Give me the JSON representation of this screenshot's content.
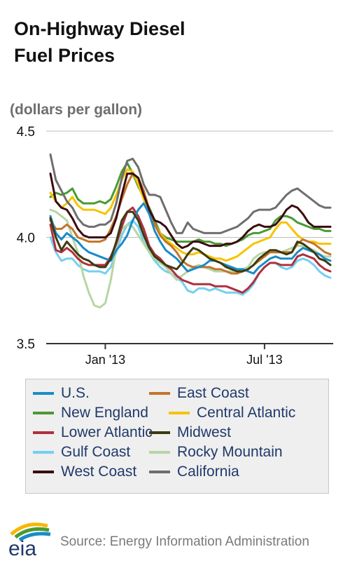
{
  "header": {
    "title_line1": "On-Highway Diesel",
    "title_line2": "Fuel Prices",
    "unit_label": "(dollars per gallon)"
  },
  "footer": {
    "logo_text": "eia",
    "source": "Source: Energy Information Administration"
  },
  "chart_data": {
    "type": "line",
    "title": "On-Highway Diesel Fuel Prices",
    "ylabel": "(dollars per gallon)",
    "ylim": [
      3.5,
      4.5
    ],
    "yticks": [
      "3.5",
      "4.0",
      "4.5"
    ],
    "x_ticks": [
      "Jan '13",
      "Jul '13"
    ],
    "x_tick_indices": [
      10,
      39
    ],
    "grid": "horizontal",
    "legend_position": "bottom",
    "x_count": 52,
    "series": [
      {
        "name": "U.S.",
        "color": "#1a8bc9",
        "values": [
          4.1,
          4.02,
          3.99,
          4.02,
          4.0,
          3.98,
          3.95,
          3.93,
          3.92,
          3.91,
          3.9,
          3.89,
          3.94,
          3.97,
          4.01,
          4.08,
          4.13,
          4.16,
          4.11,
          4.03,
          3.98,
          3.94,
          3.92,
          3.9,
          3.87,
          3.84,
          3.85,
          3.86,
          3.87,
          3.89,
          3.89,
          3.88,
          3.87,
          3.86,
          3.85,
          3.85,
          3.84,
          3.83,
          3.86,
          3.88,
          3.9,
          3.91,
          3.9,
          3.9,
          3.9,
          3.93,
          3.95,
          3.94,
          3.93,
          3.92,
          3.9,
          3.89
        ]
      },
      {
        "name": "East Coast",
        "color": "#c2752a",
        "values": [
          4.08,
          4.04,
          4.04,
          4.06,
          4.04,
          4.0,
          3.99,
          3.98,
          3.98,
          3.98,
          3.99,
          4.04,
          4.1,
          4.18,
          4.25,
          4.3,
          4.28,
          4.22,
          4.13,
          4.06,
          4.01,
          3.98,
          3.96,
          3.93,
          3.89,
          3.87,
          3.86,
          3.86,
          3.86,
          3.86,
          3.85,
          3.85,
          3.84,
          3.83,
          3.83,
          3.84,
          3.85,
          3.87,
          3.89,
          3.91,
          3.93,
          3.93,
          3.93,
          3.93,
          3.93,
          3.97,
          3.99,
          3.98,
          3.97,
          3.95,
          3.93,
          3.92
        ]
      },
      {
        "name": "New England",
        "color": "#4a9a33",
        "values": [
          4.19,
          4.21,
          4.2,
          4.21,
          4.23,
          4.18,
          4.16,
          4.16,
          4.16,
          4.17,
          4.16,
          4.18,
          4.24,
          4.31,
          4.35,
          4.3,
          4.24,
          4.19,
          4.14,
          4.08,
          4.02,
          4.0,
          3.99,
          3.98,
          3.98,
          3.98,
          3.98,
          3.99,
          3.98,
          3.98,
          3.97,
          3.97,
          3.96,
          3.97,
          3.98,
          3.99,
          4.01,
          4.02,
          4.02,
          4.03,
          4.04,
          4.08,
          4.1,
          4.1,
          4.09,
          4.07,
          4.06,
          4.05,
          4.04,
          4.04,
          4.03,
          4.03
        ]
      },
      {
        "name": "Central Atlantic",
        "color": "#f5c400",
        "values": [
          4.21,
          4.17,
          4.14,
          4.16,
          4.19,
          4.15,
          4.13,
          4.13,
          4.13,
          4.12,
          4.11,
          4.14,
          4.2,
          4.27,
          4.32,
          4.31,
          4.25,
          4.18,
          4.11,
          4.06,
          4.02,
          3.99,
          3.97,
          3.95,
          3.93,
          3.92,
          3.92,
          3.93,
          3.92,
          3.91,
          3.9,
          3.9,
          3.89,
          3.9,
          3.91,
          3.93,
          3.95,
          3.97,
          3.98,
          3.99,
          4.0,
          4.04,
          4.07,
          4.07,
          4.04,
          4.01,
          3.99,
          3.98,
          3.98,
          3.97,
          3.97,
          3.97
        ]
      },
      {
        "name": "Lower Atlantic",
        "color": "#b0303f",
        "values": [
          4.06,
          3.94,
          3.93,
          3.95,
          3.93,
          3.9,
          3.88,
          3.87,
          3.87,
          3.87,
          3.87,
          3.91,
          3.97,
          4.05,
          4.12,
          4.14,
          4.1,
          4.04,
          3.96,
          3.92,
          3.9,
          3.87,
          3.85,
          3.82,
          3.8,
          3.79,
          3.78,
          3.78,
          3.78,
          3.78,
          3.77,
          3.77,
          3.77,
          3.76,
          3.75,
          3.74,
          3.76,
          3.79,
          3.83,
          3.86,
          3.88,
          3.88,
          3.87,
          3.87,
          3.87,
          3.91,
          3.92,
          3.91,
          3.9,
          3.87,
          3.85,
          3.84
        ]
      },
      {
        "name": "Midwest",
        "color": "#3d3a12",
        "values": [
          4.09,
          4.0,
          3.94,
          3.98,
          3.95,
          3.92,
          3.9,
          3.89,
          3.87,
          3.86,
          3.86,
          3.9,
          3.98,
          4.08,
          4.12,
          4.12,
          4.08,
          4.01,
          3.95,
          3.91,
          3.89,
          3.87,
          3.86,
          3.85,
          3.88,
          3.92,
          3.95,
          3.94,
          3.92,
          3.9,
          3.89,
          3.88,
          3.86,
          3.85,
          3.84,
          3.84,
          3.85,
          3.87,
          3.9,
          3.92,
          3.94,
          3.94,
          3.93,
          3.92,
          3.93,
          3.98,
          3.97,
          3.95,
          3.93,
          3.9,
          3.89,
          3.87
        ]
      },
      {
        "name": "Gulf Coast",
        "color": "#75d0f0",
        "values": [
          4.0,
          3.93,
          3.89,
          3.9,
          3.9,
          3.87,
          3.85,
          3.84,
          3.84,
          3.84,
          3.83,
          3.86,
          3.93,
          4.01,
          4.06,
          4.08,
          4.05,
          3.98,
          3.93,
          3.89,
          3.86,
          3.84,
          3.83,
          3.81,
          3.79,
          3.75,
          3.74,
          3.76,
          3.76,
          3.75,
          3.76,
          3.75,
          3.74,
          3.74,
          3.74,
          3.73,
          3.75,
          3.78,
          3.83,
          3.86,
          3.88,
          3.88,
          3.86,
          3.85,
          3.86,
          3.89,
          3.9,
          3.89,
          3.87,
          3.84,
          3.82,
          3.81
        ]
      },
      {
        "name": "Rocky Mountain",
        "color": "#b7d6a3",
        "values": [
          4.13,
          4.12,
          4.1,
          4.08,
          4.0,
          3.93,
          3.82,
          3.74,
          3.68,
          3.67,
          3.69,
          3.8,
          3.95,
          4.04,
          4.06,
          4.05,
          4.01,
          3.97,
          3.93,
          3.9,
          3.88,
          3.86,
          3.83,
          3.8,
          3.82,
          3.84,
          3.86,
          3.87,
          3.86,
          3.85,
          3.84,
          3.84,
          3.84,
          3.84,
          3.84,
          3.85,
          3.86,
          3.9,
          3.92,
          3.93,
          3.93,
          3.93,
          3.93,
          3.94,
          3.95,
          3.96,
          3.96,
          3.95,
          3.94,
          3.92,
          3.91,
          3.91
        ]
      },
      {
        "name": "West Coast",
        "color": "#3a0c10",
        "values": [
          4.3,
          4.17,
          4.14,
          4.13,
          4.09,
          4.04,
          4.01,
          4.0,
          4.0,
          4.0,
          4.0,
          4.02,
          4.09,
          4.2,
          4.3,
          4.3,
          4.28,
          4.2,
          4.13,
          4.08,
          4.07,
          4.05,
          4.01,
          3.97,
          3.95,
          3.96,
          3.98,
          3.98,
          3.97,
          3.96,
          3.96,
          3.96,
          3.97,
          3.97,
          3.98,
          4.0,
          4.03,
          4.05,
          4.06,
          4.05,
          4.05,
          4.06,
          4.09,
          4.13,
          4.15,
          4.14,
          4.11,
          4.07,
          4.05,
          4.05,
          4.05,
          4.05
        ]
      },
      {
        "name": "California",
        "color": "#6e6e6e",
        "values": [
          4.39,
          4.27,
          4.22,
          4.17,
          4.14,
          4.09,
          4.06,
          4.05,
          4.05,
          4.06,
          4.06,
          4.08,
          4.16,
          4.28,
          4.36,
          4.37,
          4.33,
          4.25,
          4.2,
          4.2,
          4.19,
          4.13,
          4.07,
          4.02,
          4.02,
          4.07,
          4.04,
          4.03,
          4.02,
          4.02,
          4.02,
          4.02,
          4.03,
          4.04,
          4.05,
          4.07,
          4.09,
          4.12,
          4.13,
          4.13,
          4.13,
          4.14,
          4.17,
          4.2,
          4.22,
          4.23,
          4.21,
          4.19,
          4.17,
          4.15,
          4.14,
          4.14
        ]
      }
    ]
  }
}
